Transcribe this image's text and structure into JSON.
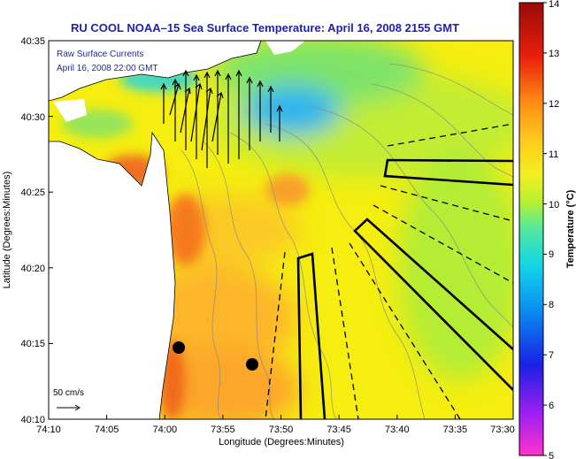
{
  "chart_data": {
    "type": "heatmap",
    "title": "RU COOL  NOAA–15  Sea Surface Temperature:  April 16, 2008 2155 GMT",
    "xlabel": "Longitude (Degrees:Minutes)",
    "ylabel": "Latitude (Degrees:Minutes)",
    "x_tick_labels": [
      "74:10",
      "74:05",
      "74:00",
      "73:55",
      "73:50",
      "73:45",
      "73:40",
      "73:35",
      "73:30"
    ],
    "y_tick_labels": [
      "40:10",
      "40:15",
      "40:20",
      "40:25",
      "40:30",
      "40:35"
    ],
    "xlim": [
      -74.1667,
      -73.5
    ],
    "ylim": [
      40.1667,
      40.5833
    ],
    "colorbar": {
      "label": "Temperature (°C)",
      "range": [
        5,
        14
      ],
      "ticks": [
        "5",
        "6",
        "7",
        "8",
        "9",
        "10",
        "11",
        "12",
        "13",
        "14"
      ]
    },
    "annotations": {
      "legend_label": "Raw Surface Currents",
      "legend_time": "April 16, 2008 22:00 GMT",
      "scale_label": "50 cm/s"
    }
  }
}
